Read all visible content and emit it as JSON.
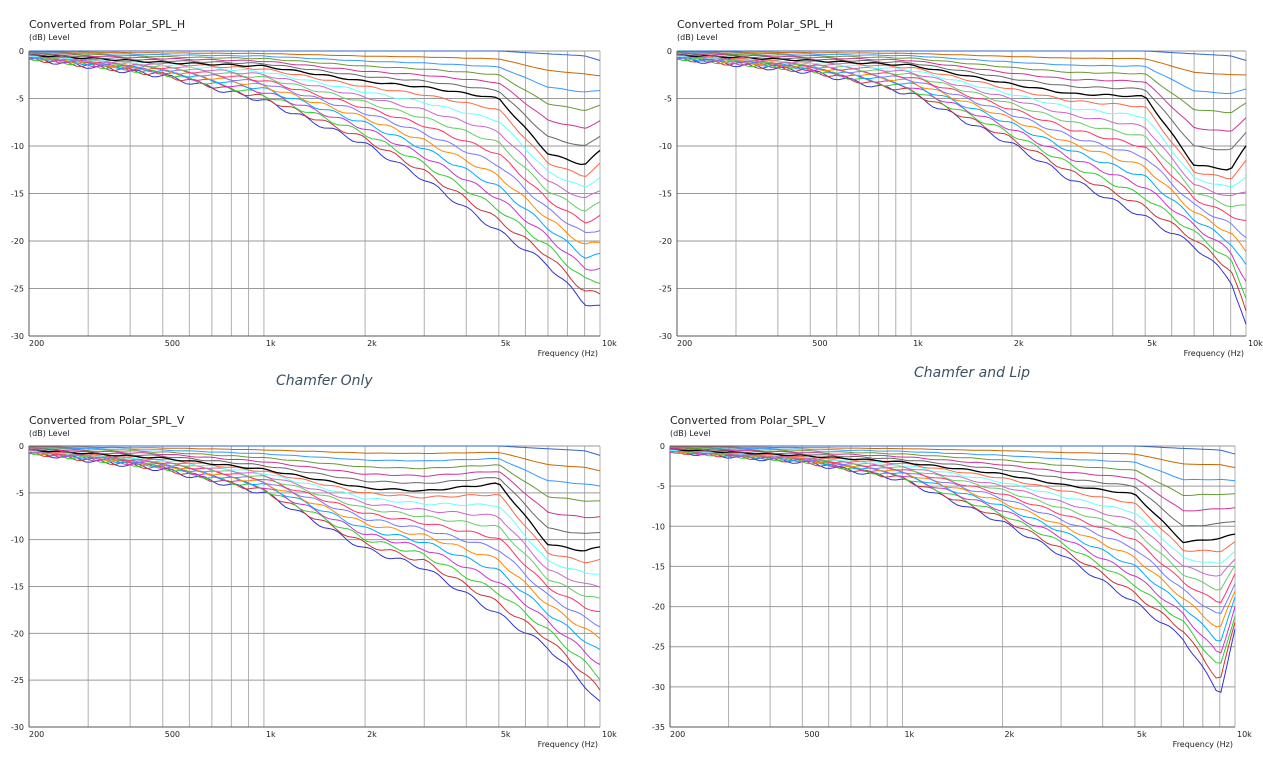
{
  "captions": [
    "Chamfer Only",
    "Chamfer and Lip"
  ],
  "colors": [
    "#3333cc",
    "#cc3333",
    "#33cc33",
    "#cc33cc",
    "#00aaff",
    "#ff8800",
    "#7777ff",
    "#ff3366",
    "#66cc66",
    "#cc66cc",
    "#66ffff",
    "#ff6644",
    "#000000",
    "#666666",
    "#cc3399",
    "#669933",
    "#3399ff",
    "#cc6600",
    "#3366cc"
  ],
  "chart_data": [
    {
      "type": "line",
      "title": "Converted from Polar_SPL_H",
      "unit_label": "(dB)  Level",
      "xlabel": "Frequency  (Hz)",
      "x_scale": "log",
      "xlim": [
        200,
        10000
      ],
      "ylim": [
        -30,
        0
      ],
      "y_ticks": [
        "0",
        "-5",
        "-10",
        "-15",
        "-20",
        "-25",
        "-30"
      ],
      "x_ticks": [
        "200",
        "500",
        "1k",
        "2k",
        "5k",
        "10k"
      ],
      "grid": true,
      "num_series": 19,
      "series_shape": {
        "x": [
          200,
          500,
          1000,
          2000,
          3000,
          5000,
          7000,
          9000,
          10000
        ],
        "outermost_db": [
          -0.8,
          -2.6,
          -5.2,
          -9.8,
          -13.5,
          -19.0,
          -22.5,
          -26.5,
          -27.0
        ],
        "middle_black_db": [
          -0.4,
          -1.2,
          -1.6,
          -3.2,
          -3.8,
          -5.0,
          -10.8,
          -12.0,
          -10.5
        ],
        "innermost_db": [
          0,
          0,
          0,
          0,
          0,
          0,
          -0.3,
          -0.5,
          -1.0
        ]
      }
    },
    {
      "type": "line",
      "title": "Converted from Polar_SPL_H",
      "unit_label": "(dB)  Level",
      "xlabel": "Frequency  (Hz)",
      "x_scale": "log",
      "xlim": [
        200,
        10000
      ],
      "ylim": [
        -30,
        0
      ],
      "y_ticks": [
        "0",
        "-5",
        "-10",
        "-15",
        "-20",
        "-25",
        "-30"
      ],
      "x_ticks": [
        "200",
        "500",
        "1k",
        "2k",
        "5k",
        "10k"
      ],
      "grid": true,
      "num_series": 19,
      "series_shape": {
        "x": [
          200,
          500,
          1000,
          2000,
          3000,
          5000,
          7000,
          9000,
          10000
        ],
        "outermost_db": [
          -0.8,
          -2.2,
          -4.5,
          -9.8,
          -13.5,
          -17.5,
          -20.5,
          -24.0,
          -29.0
        ],
        "middle_black_db": [
          -0.4,
          -1.0,
          -1.5,
          -3.5,
          -4.5,
          -4.8,
          -12.0,
          -12.5,
          -10.0
        ],
        "innermost_db": [
          0,
          0,
          0,
          0,
          0,
          0,
          -0.3,
          -0.5,
          -1.0
        ]
      }
    },
    {
      "type": "line",
      "title": "Converted from Polar_SPL_V",
      "unit_label": "(dB)  Level",
      "xlabel": "Frequency  (Hz)",
      "x_scale": "log",
      "xlim": [
        200,
        10000
      ],
      "ylim": [
        -30,
        0
      ],
      "y_ticks": [
        "0",
        "-5",
        "-10",
        "-15",
        "-20",
        "-25",
        "-30"
      ],
      "x_ticks": [
        "200",
        "500",
        "1k",
        "2k",
        "5k",
        "10k"
      ],
      "grid": true,
      "num_series": 19,
      "series_shape": {
        "x": [
          200,
          500,
          1000,
          2000,
          3000,
          5000,
          7000,
          9000,
          10000
        ],
        "outermost_db": [
          -0.7,
          -2.5,
          -5.0,
          -11.0,
          -13.0,
          -18.0,
          -21.5,
          -25.5,
          -27.5
        ],
        "middle_black_db": [
          -0.4,
          -1.3,
          -2.5,
          -4.5,
          -4.8,
          -4.0,
          -10.5,
          -11.2,
          -10.8
        ],
        "innermost_db": [
          0,
          0,
          0,
          0,
          0,
          0,
          -0.3,
          -0.5,
          -1.0
        ]
      }
    },
    {
      "type": "line",
      "title": "Converted from Polar_SPL_V",
      "unit_label": "(dB)  Level",
      "xlabel": "Frequency  (Hz)",
      "x_scale": "log",
      "xlim": [
        200,
        10000
      ],
      "ylim": [
        -35,
        0
      ],
      "y_ticks": [
        "0",
        "-5",
        "-10",
        "-15",
        "-20",
        "-25",
        "-30",
        "-35"
      ],
      "x_ticks": [
        "200",
        "500",
        "1k",
        "2k",
        "5k",
        "10k"
      ],
      "grid": true,
      "num_series": 19,
      "series_shape": {
        "x": [
          200,
          500,
          1000,
          2000,
          3000,
          5000,
          7000,
          9000,
          10000
        ],
        "outermost_db": [
          -0.7,
          -2.0,
          -4.2,
          -9.5,
          -13.5,
          -19.5,
          -24.0,
          -31.0,
          -23.0
        ],
        "middle_black_db": [
          -0.4,
          -1.2,
          -2.0,
          -3.5,
          -4.8,
          -6.0,
          -12.0,
          -11.5,
          -11.0
        ],
        "innermost_db": [
          0,
          0,
          0,
          0,
          0,
          0,
          -0.3,
          -0.5,
          -1.0
        ]
      }
    }
  ]
}
